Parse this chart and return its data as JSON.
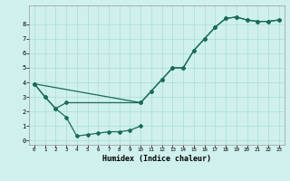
{
  "xlabel": "Humidex (Indice chaleur)",
  "bg_color": "#cff0ec",
  "line_color": "#1a6b5a",
  "grid_color": "#aaddd6",
  "xlim": [
    -0.5,
    23.5
  ],
  "ylim": [
    -0.3,
    9.3
  ],
  "xticks": [
    0,
    1,
    2,
    3,
    4,
    5,
    6,
    7,
    8,
    9,
    10,
    11,
    12,
    13,
    14,
    15,
    16,
    17,
    18,
    19,
    20,
    21,
    22,
    23
  ],
  "yticks": [
    0,
    1,
    2,
    3,
    4,
    5,
    6,
    7,
    8
  ],
  "curve_bottom_x": [
    0,
    1,
    2,
    3,
    4,
    5,
    6,
    7,
    8,
    9,
    10
  ],
  "curve_bottom_y": [
    3.9,
    3.0,
    2.2,
    1.6,
    0.3,
    0.4,
    0.5,
    0.6,
    0.6,
    0.7,
    1.0
  ],
  "curve_mid_x": [
    0,
    1,
    2,
    3,
    10,
    11,
    12,
    13,
    14,
    15,
    16,
    17,
    18,
    19,
    20,
    21,
    22,
    23
  ],
  "curve_mid_y": [
    3.9,
    3.0,
    2.2,
    2.6,
    2.6,
    3.4,
    4.2,
    5.0,
    5.0,
    6.2,
    7.0,
    7.8,
    8.4,
    8.5,
    8.3,
    8.2,
    8.2,
    8.3
  ],
  "curve_top_x": [
    0,
    10,
    11,
    12,
    13,
    14,
    15,
    16,
    17,
    18,
    19,
    20,
    21,
    22,
    23
  ],
  "curve_top_y": [
    3.9,
    2.6,
    3.4,
    4.2,
    5.0,
    5.0,
    6.2,
    7.0,
    7.8,
    8.4,
    8.5,
    8.3,
    8.2,
    8.2,
    8.3
  ]
}
